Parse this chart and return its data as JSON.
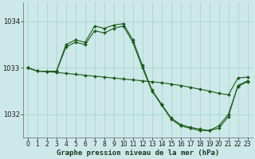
{
  "xlabel": "Graphe pression niveau de la mer (hPa)",
  "x_ticks": [
    0,
    1,
    2,
    3,
    4,
    5,
    6,
    7,
    8,
    9,
    10,
    11,
    12,
    13,
    14,
    15,
    16,
    17,
    18,
    19,
    20,
    21,
    22,
    23
  ],
  "ylim": [
    1031.5,
    1034.4
  ],
  "yticks": [
    1032,
    1033,
    1034
  ],
  "ytick_labels": [
    "1032",
    "1033",
    "1034"
  ],
  "bg_color": "#cce8e8",
  "grid_color": "#aad4d4",
  "line_color": "#1a5c1a",
  "series1": [
    1033.0,
    1032.93,
    1032.92,
    1032.92,
    1033.45,
    1033.55,
    1033.5,
    1033.8,
    1033.75,
    1033.85,
    1033.9,
    1033.55,
    1033.0,
    1032.5,
    1032.2,
    1031.9,
    1031.75,
    1031.7,
    1031.65,
    1031.65,
    1031.75,
    1032.0,
    1032.6,
    1032.7
  ],
  "series2": [
    1033.0,
    1032.93,
    1032.92,
    1032.9,
    1032.88,
    1032.86,
    1032.84,
    1032.82,
    1032.8,
    1032.78,
    1032.76,
    1032.74,
    1032.72,
    1032.7,
    1032.68,
    1032.65,
    1032.62,
    1032.58,
    1032.54,
    1032.5,
    1032.45,
    1032.42,
    1032.78,
    1032.8
  ],
  "series3": [
    1033.0,
    1032.93,
    1032.92,
    1032.93,
    1033.5,
    1033.6,
    1033.55,
    1033.9,
    1033.85,
    1033.92,
    1033.95,
    1033.6,
    1033.05,
    1032.52,
    1032.22,
    1031.92,
    1031.78,
    1031.72,
    1031.68,
    1031.65,
    1031.7,
    1031.95,
    1032.62,
    1032.72
  ],
  "xlim": [
    -0.5,
    23.5
  ],
  "tick_fontsize": 5.5,
  "ylabel_fontsize": 6.0,
  "xlabel_fontsize": 6.5,
  "marker_size": 2.0,
  "linewidth": 0.8
}
